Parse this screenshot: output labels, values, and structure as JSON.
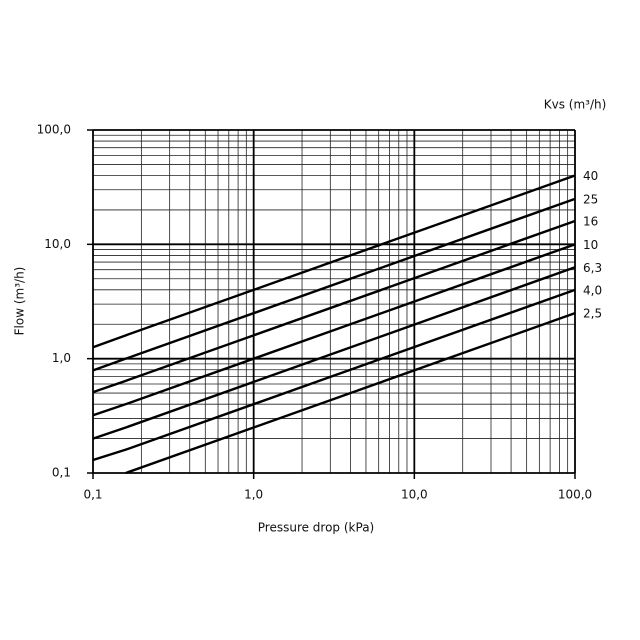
{
  "chart_data": {
    "type": "line",
    "x_label": "Pressure drop (kPa)",
    "y_label": "Flow  (m³/h)",
    "legend_title": "Kvs (m³/h)",
    "log_x": true,
    "log_y": true,
    "grid": true,
    "minor_grid": true,
    "color": "#000000",
    "x": [
      0.1,
      0.16,
      100
    ],
    "series": [
      {
        "name": "40",
        "values": [
          1.26,
          1.6,
          40
        ]
      },
      {
        "name": "25",
        "values": [
          0.79,
          1.0,
          25
        ]
      },
      {
        "name": "16",
        "values": [
          0.51,
          0.64,
          16
        ]
      },
      {
        "name": "10",
        "values": [
          0.32,
          0.4,
          10
        ]
      },
      {
        "name": "6,3",
        "values": [
          0.2,
          0.25,
          6.3
        ]
      },
      {
        "name": "4,0",
        "values": [
          0.13,
          0.16,
          4.0
        ]
      },
      {
        "name": "2,5",
        "values": [
          null,
          0.1,
          2.5
        ]
      }
    ],
    "xlim": [
      0.1,
      100
    ],
    "ylim": [
      0.1,
      100
    ],
    "xticks": [
      {
        "value": 0.1,
        "label": "0,1"
      },
      {
        "value": 1,
        "label": "1,0"
      },
      {
        "value": 10,
        "label": "10,0"
      },
      {
        "value": 100,
        "label": "100,0"
      }
    ],
    "yticks": [
      {
        "value": 0.1,
        "label": "0,1"
      },
      {
        "value": 1,
        "label": "1,0"
      },
      {
        "value": 10,
        "label": "10,0"
      },
      {
        "value": 100,
        "label": "100,0"
      }
    ]
  }
}
